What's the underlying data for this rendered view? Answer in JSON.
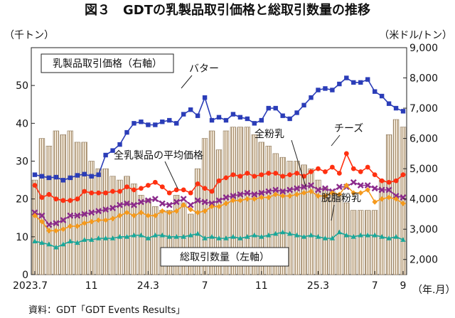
{
  "chart_data": {
    "type": "bar+line",
    "title": "図３　GDTの乳製品取引価格と総取引数量の推移",
    "left_unit": "（千トン）",
    "right_unit": "（米ドル/トン）",
    "x_unit": "（年.月）",
    "source": "資料：GDT「GDT Events Results」",
    "left_axis": {
      "min": 0,
      "max": 60,
      "ticks": [
        0,
        10,
        20,
        30,
        40,
        50
      ]
    },
    "right_axis": {
      "min": 1500,
      "max": 9000,
      "ticks": [
        2000,
        3000,
        4000,
        5000,
        6000,
        7000,
        8000,
        9000
      ],
      "tick_labels": [
        "2,000",
        "3,000",
        "4,000",
        "5,000",
        "6,000",
        "7,000",
        "8,000",
        "9,000"
      ]
    },
    "x_labels": [
      {
        "index": 0,
        "label": "2023.7"
      },
      {
        "index": 8,
        "label": "11"
      },
      {
        "index": 16,
        "label": "24.3"
      },
      {
        "index": 24,
        "label": "7"
      },
      {
        "index": 32,
        "label": "11"
      },
      {
        "index": 40,
        "label": "25.3"
      },
      {
        "index": 48,
        "label": "7"
      },
      {
        "index": 52,
        "label": "9"
      }
    ],
    "point_count": 53,
    "legend_box": "乳製品取引価格（右軸）",
    "bar_series": {
      "name": "総取引数量（左軸）",
      "axis": "left",
      "values": [
        25,
        36,
        34,
        38,
        37,
        38,
        35,
        35,
        30,
        28,
        28,
        26,
        25,
        26,
        24,
        21,
        20,
        18,
        17,
        17,
        21,
        19,
        16,
        28,
        36,
        38,
        33,
        38,
        39,
        39,
        39,
        37,
        35,
        34,
        32,
        31,
        30,
        30,
        29,
        28,
        25,
        23,
        22,
        21,
        19,
        17,
        17,
        17,
        17,
        25,
        37,
        41,
        39
      ]
    },
    "series": [
      {
        "name": "バター",
        "axis": "right",
        "color": "#2b3db8",
        "marker": "square",
        "values": [
          4800,
          4750,
          4700,
          4720,
          4620,
          4700,
          4780,
          4820,
          4750,
          4800,
          5450,
          5600,
          5800,
          6200,
          6500,
          6550,
          6450,
          6450,
          6550,
          6600,
          6500,
          6800,
          6950,
          6750,
          7350,
          6600,
          6700,
          6600,
          6800,
          6700,
          6650,
          6500,
          6600,
          7000,
          7000,
          6750,
          6650,
          6850,
          7100,
          7350,
          7600,
          7650,
          7600,
          7800,
          8000,
          7850,
          7850,
          7950,
          7550,
          7400,
          7150,
          7000,
          6900
        ]
      },
      {
        "name": "チーズ",
        "axis": "right",
        "color": "#ff3010",
        "marker": "circle",
        "values": [
          4450,
          4050,
          4150,
          4000,
          3950,
          3950,
          4000,
          4250,
          4200,
          4200,
          4200,
          4250,
          4250,
          4400,
          4300,
          4350,
          4450,
          4550,
          4400,
          4200,
          4300,
          4300,
          4200,
          4500,
          4350,
          4250,
          4600,
          4700,
          4800,
          4750,
          4850,
          4750,
          4800,
          4850,
          4850,
          4750,
          4800,
          4850,
          4750,
          4900,
          5000,
          4900,
          5050,
          4850,
          5500,
          5000,
          4900,
          5050,
          4800,
          4600,
          4550,
          4600,
          4800
        ]
      },
      {
        "name": "全乳製品の平均価格",
        "axis": "right",
        "color": "#8b2a8b",
        "marker": "x",
        "values": [
          3550,
          3450,
          3150,
          3200,
          3300,
          3450,
          3450,
          3500,
          3550,
          3600,
          3650,
          3700,
          3800,
          3850,
          3800,
          3900,
          3950,
          4000,
          3850,
          3800,
          3900,
          4000,
          3800,
          3950,
          3900,
          3850,
          3950,
          4050,
          4100,
          4150,
          4200,
          4150,
          4200,
          4250,
          4300,
          4250,
          4300,
          4350,
          4400,
          4450,
          4300,
          4350,
          4250,
          4400,
          4400,
          4550,
          4450,
          4450,
          4350,
          4300,
          4300,
          4100,
          4050
        ]
      },
      {
        "name": "全粉乳",
        "axis": "right",
        "color": "#f59a1d",
        "marker": "diamond",
        "values": [
          3450,
          3250,
          2950,
          2950,
          3000,
          3100,
          3100,
          3200,
          3250,
          3300,
          3300,
          3350,
          3450,
          3550,
          3450,
          3550,
          3450,
          3450,
          3600,
          3550,
          3600,
          3800,
          3650,
          3550,
          3600,
          3750,
          3750,
          3850,
          3950,
          3950,
          4000,
          4000,
          4050,
          4050,
          4150,
          4100,
          4100,
          4150,
          4200,
          4250,
          4100,
          4100,
          4200,
          4150,
          4450,
          4200,
          4200,
          4300,
          3900,
          4000,
          4050,
          4000,
          3850
        ]
      },
      {
        "name": "脱脂粉乳",
        "axis": "right",
        "color": "#1aa79a",
        "marker": "triangle",
        "values": [
          2600,
          2550,
          2500,
          2400,
          2500,
          2600,
          2550,
          2650,
          2650,
          2700,
          2700,
          2700,
          2750,
          2750,
          2800,
          2800,
          2700,
          2800,
          2800,
          2750,
          2750,
          2750,
          2800,
          2850,
          2700,
          2750,
          2700,
          2700,
          2750,
          2700,
          2750,
          2800,
          2750,
          2800,
          2850,
          2900,
          2850,
          2800,
          2750,
          2800,
          2750,
          2700,
          2700,
          2900,
          2800,
          2750,
          2800,
          2800,
          2800,
          2750,
          2700,
          2750,
          2650
        ]
      }
    ],
    "annotations": [
      {
        "label": "バター",
        "series": "バター"
      },
      {
        "label": "チーズ",
        "series": "チーズ"
      },
      {
        "label": "全粉乳",
        "series": "全粉乳"
      },
      {
        "label": "全乳製品の平均価格",
        "series": "全乳製品の平均価格"
      },
      {
        "label": "脱脂粉乳",
        "series": "脱脂粉乳"
      },
      {
        "label": "総取引数量（左軸）",
        "series": "総取引数量（左軸）"
      }
    ]
  }
}
